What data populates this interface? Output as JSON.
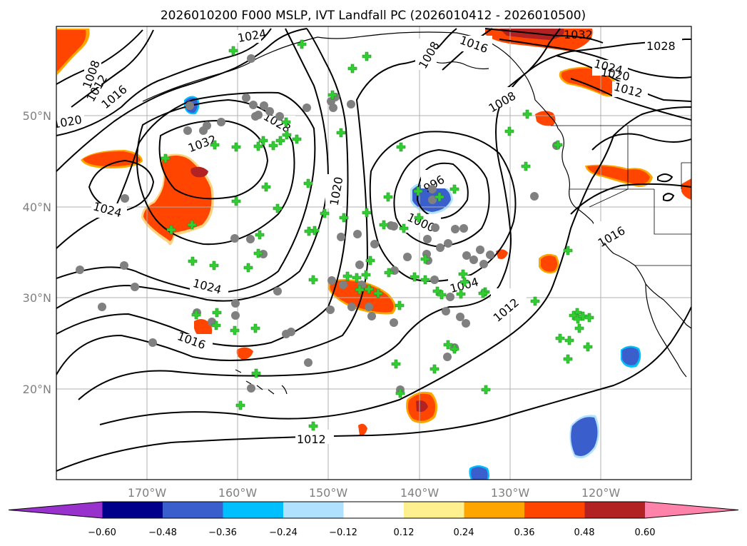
{
  "title": "2026010200 F000 MSLP, IVT Landfall PC (2026010412 - 2026010500)",
  "lat_labels": [
    "50°N",
    "40°N",
    "30°N",
    "20°N"
  ],
  "lon_labels": [
    "170°W",
    "160°W",
    "150°W",
    "140°W",
    "130°W",
    "120°W"
  ],
  "colorbar": {
    "colors": [
      "#9932cc",
      "#00008b",
      "#3a5fcd",
      "#00bfff",
      "#b0e2ff",
      "#ffffff",
      "#fff08f",
      "#ffa500",
      "#ff4500",
      "#b22222",
      "#ff82ab"
    ],
    "tick_labels": [
      "−0.60",
      "−0.48",
      "−0.36",
      "−0.24",
      "−0.12",
      "0.12",
      "0.24",
      "0.36",
      "0.48",
      "0.60"
    ]
  },
  "isobar_labels": [
    "1024",
    "1008",
    "1012",
    "1016",
    "1020",
    "1032",
    "1028",
    "1024",
    "1020",
    "1024",
    "1016",
    "1012",
    "1008",
    "1016",
    "1008",
    "996",
    "1000",
    "1004",
    "1012",
    "1032",
    "1028",
    "1024",
    "1020",
    "1012",
    "1016"
  ],
  "colors": {
    "marker_green": "#32cd32",
    "marker_gray": "#808080",
    "positive_strong": "#ff4500",
    "positive_max": "#b22222",
    "negative": "#3a5fcd"
  }
}
